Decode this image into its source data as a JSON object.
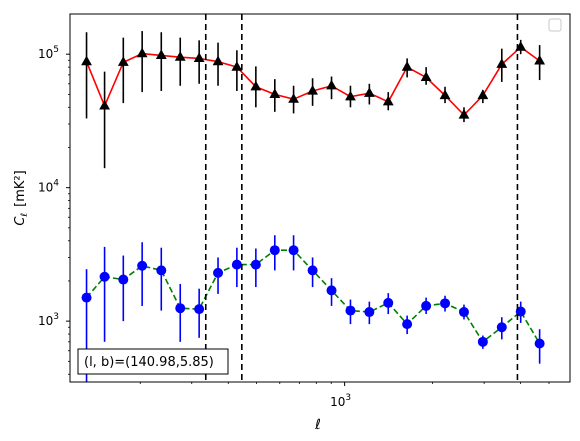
{
  "chart_data": {
    "type": "scatter",
    "title": "",
    "xlabel": "ℓ",
    "ylabel_main": "C",
    "ylabel_sub": "ℓ",
    "ylabel_unit": "[mK²]",
    "x_scale": "log",
    "y_scale": "log",
    "xlim": [
      115,
      5900
    ],
    "ylim": [
      350,
      200000
    ],
    "x_ticks": [
      {
        "value": 1000,
        "base": "10",
        "exp": "3"
      }
    ],
    "y_ticks": [
      {
        "value": 1000,
        "base": "10",
        "exp": "3"
      },
      {
        "value": 10000,
        "base": "10",
        "exp": "4"
      },
      {
        "value": 100000,
        "base": "10",
        "exp": "5"
      }
    ],
    "grid": false,
    "legend": "top-right (empty)",
    "annotation": "(l, b)=(140.98,5.85)",
    "vlines": [
      335,
      445,
      3900
    ],
    "series": [
      {
        "color": "#000000",
        "marker": "triangle",
        "line_color": "#ff0000",
        "line_style": "solid",
        "x": [
          131,
          151,
          175,
          203,
          236,
          274,
          318,
          369,
          428,
          497,
          577,
          669,
          777,
          902,
          1047,
          1215,
          1410,
          1636,
          1900,
          2205,
          2560,
          2970,
          3448,
          4002,
          4645
        ],
        "y": [
          88000,
          41000,
          87000,
          101000,
          98000,
          95000,
          93000,
          88000,
          80000,
          57000,
          50000,
          46000,
          53000,
          58000,
          48000,
          51000,
          44000,
          80000,
          67000,
          49000,
          35000,
          49000,
          84000,
          113000,
          89000
        ],
        "err_low": [
          33000,
          14000,
          43000,
          52000,
          53000,
          58000,
          60000,
          58000,
          53000,
          40000,
          37000,
          36000,
          41000,
          46000,
          40000,
          42000,
          38000,
          67000,
          59000,
          43000,
          31000,
          43000,
          62000,
          100000,
          64000
        ],
        "err_high": [
          146000,
          74000,
          133000,
          149000,
          146000,
          133000,
          127000,
          122000,
          107000,
          81000,
          65000,
          58000,
          66000,
          68000,
          58000,
          60000,
          52000,
          93000,
          80000,
          57000,
          40000,
          54000,
          110000,
          128000,
          117000
        ]
      },
      {
        "color": "#0000ff",
        "marker": "circle",
        "line_color": "#008000",
        "line_style": "dashed",
        "x": [
          131,
          151,
          175,
          203,
          236,
          274,
          318,
          369,
          428,
          497,
          577,
          669,
          777,
          902,
          1047,
          1215,
          1410,
          1636,
          1900,
          2205,
          2560,
          2970,
          3448,
          4002,
          4645
        ],
        "y": [
          1500,
          2150,
          2050,
          2600,
          2400,
          1250,
          1230,
          2300,
          2650,
          2650,
          3400,
          3400,
          2400,
          1700,
          1200,
          1170,
          1370,
          950,
          1300,
          1360,
          1170,
          700,
          900,
          1180,
          680
        ],
        "err_low": [
          350,
          700,
          1000,
          1300,
          1200,
          700,
          750,
          1600,
          1800,
          1800,
          2400,
          2400,
          1800,
          1300,
          950,
          950,
          1130,
          800,
          1130,
          1180,
          1030,
          620,
          730,
          970,
          480
        ],
        "err_high": [
          2450,
          3600,
          3100,
          3900,
          3550,
          1900,
          1750,
          3000,
          3550,
          3500,
          4400,
          4400,
          3000,
          2100,
          1450,
          1400,
          1620,
          1100,
          1500,
          1550,
          1330,
          780,
          1070,
          1400,
          870
        ]
      }
    ]
  }
}
